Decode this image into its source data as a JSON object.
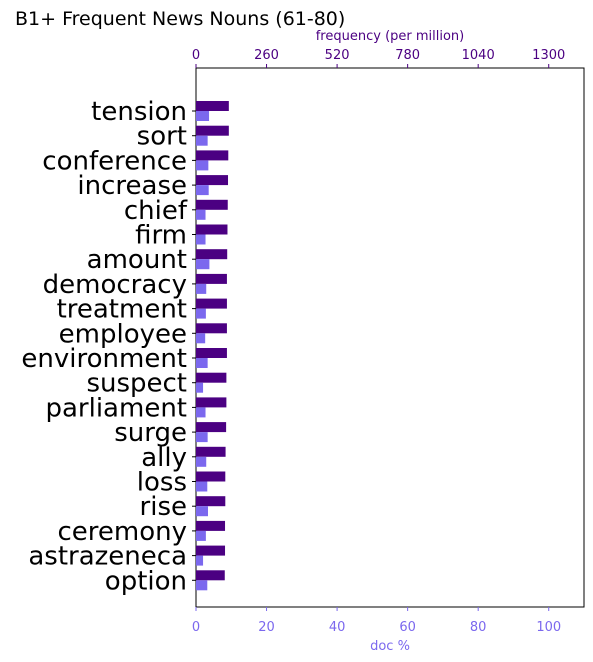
{
  "chart_data": {
    "type": "bar",
    "orientation": "horizontal",
    "title": "B1+ Frequent News Nouns (61-80)",
    "categories": [
      "tension",
      "sort",
      "conference",
      "increase",
      "chief",
      "firm",
      "amount",
      "democracy",
      "treatment",
      "employee",
      "environment",
      "suspect",
      "parliament",
      "surge",
      "ally",
      "loss",
      "rise",
      "ceremony",
      "astrazeneca",
      "option"
    ],
    "series": [
      {
        "axis": "top",
        "color": "#4b0082",
        "values": [
          121,
          121,
          119,
          118,
          117,
          116,
          115,
          114,
          114,
          114,
          114,
          112,
          112,
          111,
          109,
          108,
          108,
          107,
          107,
          106
        ]
      },
      {
        "axis": "bottom",
        "color": "#7b68ee",
        "values": [
          3.7,
          3.3,
          3.5,
          3.6,
          2.7,
          2.7,
          3.8,
          2.9,
          2.8,
          2.6,
          3.3,
          2.0,
          2.7,
          3.3,
          2.9,
          3.2,
          3.4,
          2.8,
          2.0,
          3.2
        ]
      }
    ],
    "top_axis": {
      "label": "frequency (per million)",
      "xlim": [
        0,
        1430
      ],
      "ticks": [
        0,
        260,
        520,
        780,
        1040,
        1300
      ],
      "tick_labels": [
        "0",
        "260",
        "520",
        "780",
        "1040",
        "1300"
      ],
      "color": "#4b0082"
    },
    "bottom_axis": {
      "label": "doc %",
      "xlim": [
        0,
        110
      ],
      "ticks": [
        0,
        20,
        40,
        60,
        80,
        100
      ],
      "tick_labels": [
        "0",
        "20",
        "40",
        "60",
        "80",
        "100"
      ],
      "color": "#7b68ee"
    },
    "grid": false
  }
}
